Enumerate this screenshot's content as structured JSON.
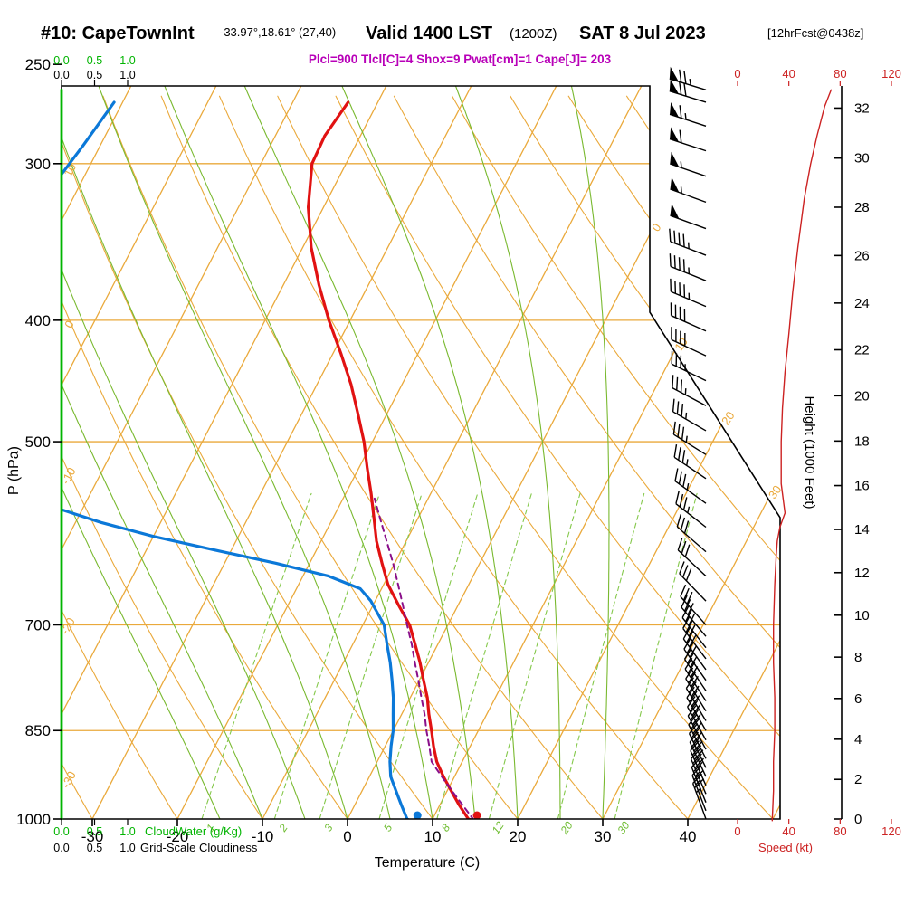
{
  "header": {
    "station": "#10: CapeTownInt",
    "coords": "-33.97°,18.61° (27,40)",
    "valid": "Valid 1400 LST",
    "zulu": "(1200Z)",
    "date": "SAT 8 Jul 2023",
    "forecast": "[12hrFcst@0438z]",
    "indices": "Plcl=900 Tlcl[C]=4 Shox=9 Pwat[cm]=1 Cape[J]= 203"
  },
  "axes": {
    "pressure_label": "P (hPa)",
    "pressure_ticks": [
      250,
      300,
      400,
      500,
      700,
      850,
      1000
    ],
    "temperature_label": "Temperature (C)",
    "temperature_ticks": [
      -30,
      -20,
      -10,
      0,
      10,
      20,
      30,
      40
    ],
    "height_label": "Height (1000 Feet)",
    "height_ticks": [
      0,
      2,
      4,
      6,
      8,
      10,
      12,
      14,
      16,
      18,
      20,
      22,
      24,
      26,
      28,
      30,
      32
    ],
    "speed_label": "Speed (kt)",
    "speed_ticks": [
      0,
      40,
      80,
      120
    ],
    "cloudwater_label": "CloudWater (g/Kg)",
    "cloudiness_label": "Grid-Scale Cloudiness",
    "cloud_scale_ticks": [
      "0.0",
      "0.5",
      "1.0"
    ]
  },
  "chart_data": {
    "type": "skewt-logp",
    "pressure_range_hpa": [
      1000,
      260
    ],
    "isotherms_c": {
      "min": -120,
      "max": 50,
      "step": 10
    },
    "isotherm_labels": [
      0,
      10,
      20,
      30
    ],
    "dry_adiabats_c": {
      "min": -30,
      "max": 120,
      "step": 10
    },
    "dry_adiabat_labels": [
      10,
      0,
      -10,
      -20,
      -30
    ],
    "moist_adiabats_c": [
      -15,
      -10,
      -5,
      0,
      5,
      10,
      15,
      20,
      25,
      30
    ],
    "mixing_ratio_gkg": [
      1,
      2,
      3,
      5,
      8,
      12,
      20,
      30
    ],
    "surface": {
      "pressure_hpa": 1003,
      "temp_c": 15,
      "dewpoint_c": 8
    },
    "temperature_profile": [
      [
        1003,
        15
      ],
      [
        1000,
        14.2
      ],
      [
        975,
        12.3
      ],
      [
        950,
        10.5
      ],
      [
        925,
        8.7
      ],
      [
        900,
        7.0
      ],
      [
        875,
        5.7
      ],
      [
        850,
        4.5
      ],
      [
        825,
        3.2
      ],
      [
        800,
        2.0
      ],
      [
        775,
        0.5
      ],
      [
        750,
        -1.0
      ],
      [
        725,
        -2.7
      ],
      [
        700,
        -4.5
      ],
      [
        675,
        -7.0
      ],
      [
        650,
        -9.5
      ],
      [
        625,
        -11.5
      ],
      [
        600,
        -13.5
      ],
      [
        575,
        -15.2
      ],
      [
        550,
        -17.0
      ],
      [
        525,
        -19.0
      ],
      [
        500,
        -21.0
      ],
      [
        475,
        -23.4
      ],
      [
        450,
        -26.0
      ],
      [
        425,
        -29.1
      ],
      [
        400,
        -32.5
      ],
      [
        375,
        -35.8
      ],
      [
        350,
        -39.0
      ],
      [
        325,
        -41.8
      ],
      [
        300,
        -44.0
      ],
      [
        285,
        -44.2
      ],
      [
        268,
        -43.5
      ]
    ],
    "dewpoint_profile": [
      [
        1003,
        7.5
      ],
      [
        1000,
        7.0
      ],
      [
        975,
        5.5
      ],
      [
        950,
        4.0
      ],
      [
        925,
        2.5
      ],
      [
        900,
        1.5
      ],
      [
        875,
        0.7
      ],
      [
        850,
        0.0
      ],
      [
        825,
        -1.0
      ],
      [
        800,
        -2.0
      ],
      [
        775,
        -3.2
      ],
      [
        750,
        -4.5
      ],
      [
        725,
        -6.0
      ],
      [
        700,
        -7.5
      ],
      [
        685,
        -9.0
      ],
      [
        670,
        -10.5
      ],
      [
        655,
        -12.5
      ],
      [
        640,
        -17.0
      ],
      [
        625,
        -24.0
      ],
      [
        610,
        -32.0
      ],
      [
        595,
        -40.0
      ],
      [
        580,
        -47.0
      ],
      [
        565,
        -53.0
      ],
      [
        550,
        -57.0
      ],
      [
        525,
        -60.5
      ],
      [
        500,
        -63.0
      ],
      [
        475,
        -65.5
      ],
      [
        450,
        -68.0
      ],
      [
        430,
        -70.5
      ],
      [
        410,
        -73.0
      ],
      [
        390,
        -75.0
      ],
      [
        370,
        -76.0
      ],
      [
        350,
        -75.5
      ],
      [
        330,
        -74.0
      ],
      [
        310,
        -73.0
      ],
      [
        290,
        -72.0
      ],
      [
        268,
        -71.0
      ]
    ],
    "parcel_profile": [
      [
        1003,
        15
      ],
      [
        975,
        12.7
      ],
      [
        950,
        10.6
      ],
      [
        925,
        8.5
      ],
      [
        900,
        6.4
      ],
      [
        875,
        5.2
      ],
      [
        850,
        3.9
      ],
      [
        825,
        2.7
      ],
      [
        800,
        1.3
      ],
      [
        775,
        -0.1
      ],
      [
        750,
        -1.6
      ],
      [
        725,
        -3.1
      ],
      [
        700,
        -4.8
      ],
      [
        675,
        -6.5
      ],
      [
        650,
        -8.3
      ],
      [
        625,
        -10.2
      ],
      [
        600,
        -12.3
      ],
      [
        575,
        -14.5
      ],
      [
        555,
        -16.3
      ]
    ],
    "wind_barbs": [
      [
        1000,
        340,
        25
      ],
      [
        985,
        339,
        26
      ],
      [
        970,
        338,
        27
      ],
      [
        955,
        337,
        28
      ],
      [
        940,
        336,
        28
      ],
      [
        925,
        335,
        29
      ],
      [
        910,
        334,
        29
      ],
      [
        895,
        333,
        30
      ],
      [
        880,
        332,
        30
      ],
      [
        865,
        331,
        30
      ],
      [
        850,
        330,
        30
      ],
      [
        835,
        329,
        30
      ],
      [
        820,
        328,
        30
      ],
      [
        805,
        327,
        29
      ],
      [
        790,
        326,
        29
      ],
      [
        775,
        325,
        29
      ],
      [
        760,
        324,
        29
      ],
      [
        745,
        323,
        28
      ],
      [
        730,
        322,
        28
      ],
      [
        715,
        320,
        28
      ],
      [
        700,
        318,
        28
      ],
      [
        670,
        316,
        28
      ],
      [
        640,
        313,
        29
      ],
      [
        612,
        311,
        30
      ],
      [
        585,
        308,
        33
      ],
      [
        560,
        306,
        36
      ],
      [
        535,
        304,
        35
      ],
      [
        512,
        302,
        34
      ],
      [
        490,
        300,
        34
      ],
      [
        468,
        298,
        35
      ],
      [
        447,
        296,
        37
      ],
      [
        427,
        295,
        39
      ],
      [
        408,
        294,
        41
      ],
      [
        390,
        293,
        43
      ],
      [
        372,
        292,
        45
      ],
      [
        355,
        291,
        47
      ],
      [
        338,
        290,
        50
      ],
      [
        322,
        290,
        53
      ],
      [
        307,
        289,
        56
      ],
      [
        293,
        288,
        60
      ],
      [
        280,
        288,
        64
      ],
      [
        268,
        287,
        70
      ],
      [
        262,
        287,
        75
      ]
    ],
    "speed_profile_kt": [
      [
        1003,
        27
      ],
      [
        950,
        28
      ],
      [
        900,
        28
      ],
      [
        850,
        29
      ],
      [
        800,
        29
      ],
      [
        750,
        28
      ],
      [
        700,
        28
      ],
      [
        650,
        29
      ],
      [
        620,
        30
      ],
      [
        600,
        31
      ],
      [
        585,
        33
      ],
      [
        570,
        37
      ],
      [
        560,
        36
      ],
      [
        540,
        34
      ],
      [
        520,
        34
      ],
      [
        500,
        34
      ],
      [
        470,
        35
      ],
      [
        440,
        37
      ],
      [
        410,
        40
      ],
      [
        380,
        43
      ],
      [
        350,
        47
      ],
      [
        320,
        52
      ],
      [
        300,
        57
      ],
      [
        285,
        62
      ],
      [
        270,
        68
      ],
      [
        262,
        73
      ]
    ],
    "cloudwater_profile": [
      [
        1000,
        0
      ],
      [
        262,
        0
      ]
    ],
    "colors": {
      "grid_orange": "#eaa93b",
      "moist_green": "#79b92f",
      "mixing_green": "#84c84a",
      "cloud_green": "#00b400",
      "temp_red": "#e11212",
      "dew_blue": "#0b78d8",
      "parcel_purple": "#8a0f8a",
      "speed_red": "#cc2222",
      "indices_magenta": "#b800b8"
    }
  }
}
